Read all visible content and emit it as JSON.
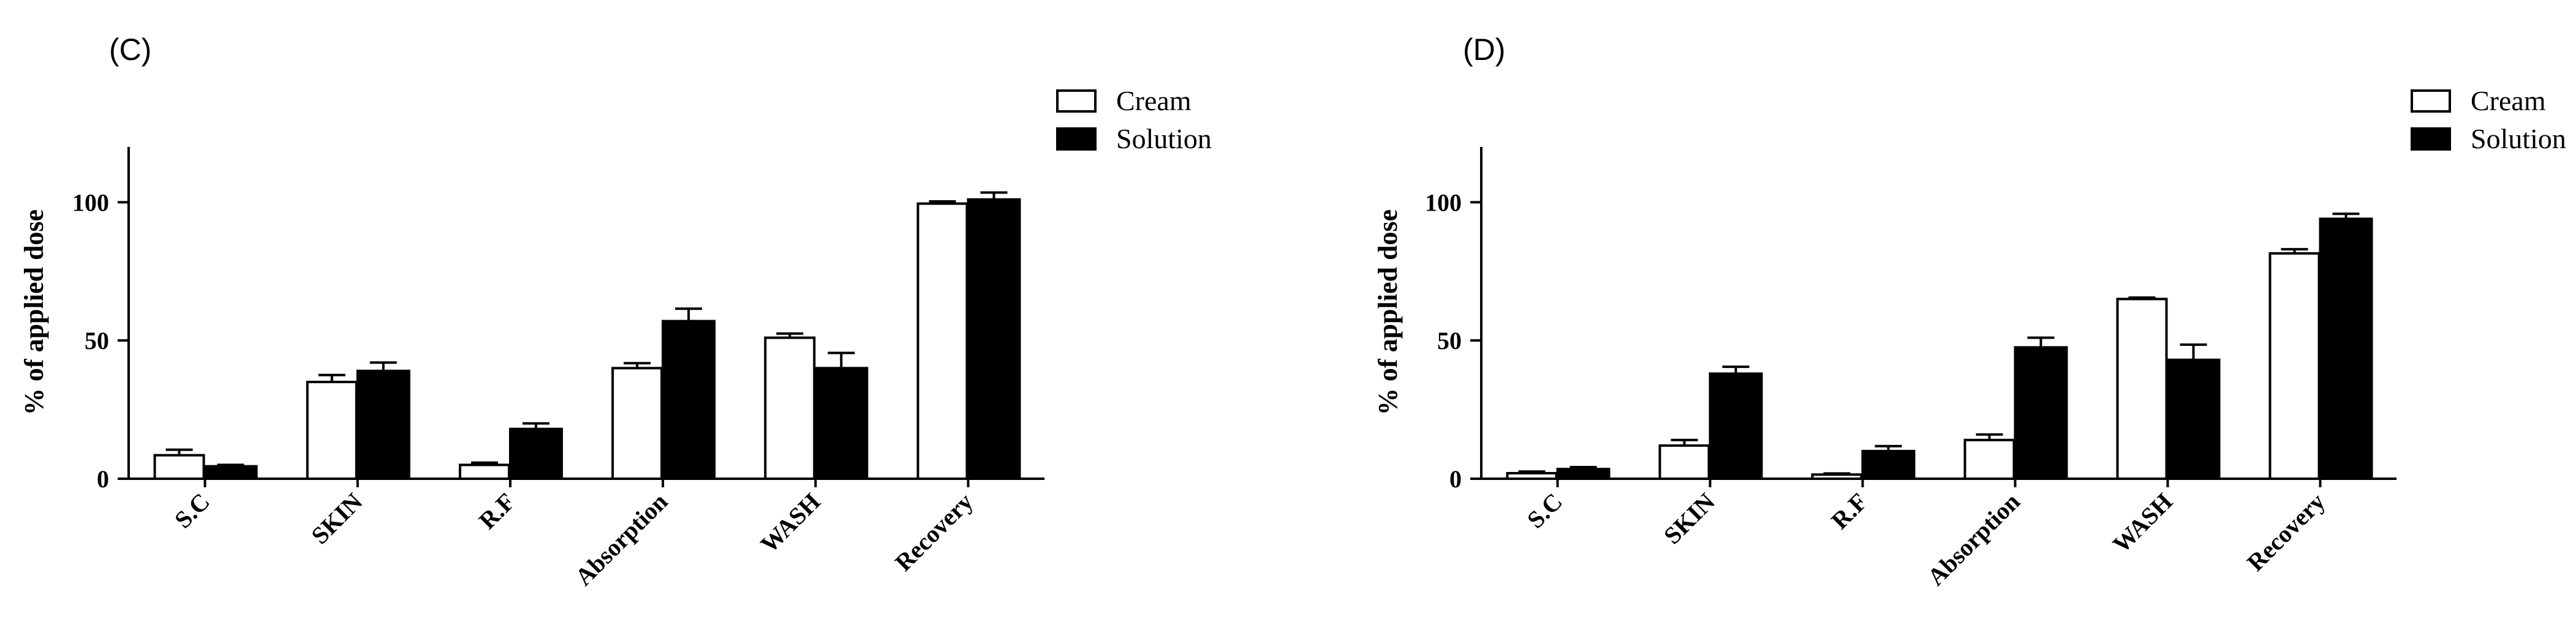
{
  "chart_data": [
    {
      "type": "bar",
      "panel": "(C)",
      "ylabel": "% of applied dose",
      "xlabel": "",
      "ylim": [
        0,
        120
      ],
      "yticks": [
        0,
        50,
        100
      ],
      "categories": [
        "S.C",
        "SKIN",
        "R.F",
        "Absorption",
        "WASH",
        "Recovery"
      ],
      "series": [
        {
          "name": "Cream",
          "fill": "#ffffff",
          "values": [
            8.5,
            35,
            5,
            40,
            51,
            99.5
          ],
          "errors": [
            2,
            2.5,
            0.8,
            1.8,
            1.5,
            0.8
          ]
        },
        {
          "name": "Solution",
          "fill": "#000000",
          "values": [
            4.5,
            39,
            18,
            57,
            40,
            101
          ],
          "errors": [
            0.5,
            3,
            2,
            4.5,
            5.5,
            2.5
          ]
        }
      ],
      "legend": "top-right"
    },
    {
      "type": "bar",
      "panel": "(D)",
      "ylabel": "% of applied dose",
      "xlabel": "",
      "ylim": [
        0,
        120
      ],
      "yticks": [
        0,
        50,
        100
      ],
      "categories": [
        "S.C",
        "SKIN",
        "R.F",
        "Absorption",
        "WASH",
        "Recovery"
      ],
      "series": [
        {
          "name": "Cream",
          "fill": "#ffffff",
          "values": [
            2,
            12,
            1.5,
            14,
            65,
            81.5
          ],
          "errors": [
            0.6,
            2,
            0.4,
            2,
            0.5,
            1.5
          ]
        },
        {
          "name": "Solution",
          "fill": "#000000",
          "values": [
            3.5,
            38,
            10,
            47.5,
            43,
            94
          ],
          "errors": [
            0.7,
            2.5,
            1.8,
            3.5,
            5.5,
            1.8
          ]
        }
      ],
      "legend": "top-right"
    }
  ]
}
